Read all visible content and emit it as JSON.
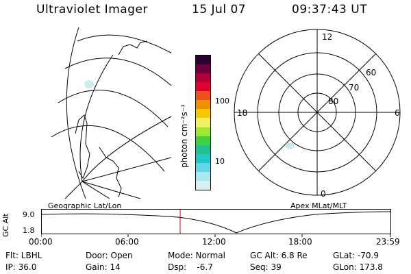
{
  "header": {
    "title": "Ultraviolet Imager",
    "date": "15 Jul 07",
    "time": "09:37:43 UT"
  },
  "colorbar": {
    "unit_label": "photon cm⁻²s⁻¹",
    "ticks": [
      "100",
      "10"
    ],
    "colors": [
      "#2a0030",
      "#6a0040",
      "#b0003a",
      "#e00030",
      "#f05020",
      "#f09000",
      "#f8c800",
      "#f0f060",
      "#a0e830",
      "#40d040",
      "#20c090",
      "#20c8c8",
      "#60d8e8",
      "#a8e8f0",
      "#d8f0f0"
    ]
  },
  "left_map": {
    "caption": "Geographic Lat/Lon"
  },
  "right_map": {
    "caption": "Apex MLat/MLT",
    "mlt_labels": {
      "top": "12",
      "left": "18",
      "right": "6",
      "bottom": "0"
    },
    "lat_labels": [
      "60",
      "70",
      "80"
    ]
  },
  "altitude_plot": {
    "ylabel": "GC Alt",
    "yticks": [
      "9.0",
      "1.8"
    ],
    "xticks": [
      "00:00",
      "06:00",
      "12:00",
      "18:00",
      "23:59"
    ],
    "marker_color": "#e00000"
  },
  "footer": {
    "col1": {
      "r1": "Flt: LBHL",
      "r2": "IP: 36.0"
    },
    "col2": {
      "r1": "Door: Open",
      "r2": "Gain: 14"
    },
    "col3": {
      "r1": "Mode: Normal",
      "r2": "Dsp:    -6.7"
    },
    "col4": {
      "r1": "GC Alt: 6.8 Re",
      "r2": "Seq: 39"
    },
    "col5": {
      "r1": "GLat: -70.9",
      "r2": "GLon: 173.8"
    }
  }
}
